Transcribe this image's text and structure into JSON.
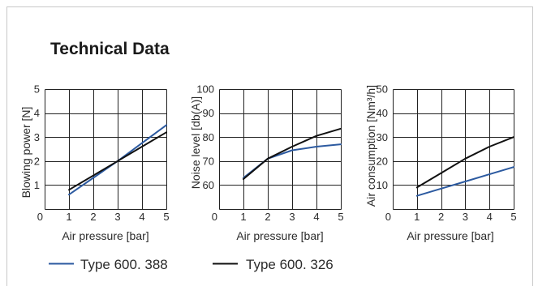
{
  "title": "Technical Data",
  "colors": {
    "frame": "#c8c8c8",
    "grid": "#222222"
  },
  "chart_data": [
    {
      "type": "line",
      "xlabel": "Air pressure [bar]",
      "ylabel": "Blowing power [N]",
      "xlim": [
        0,
        5
      ],
      "ylim": [
        0,
        5
      ],
      "x_ticks": [
        0,
        1,
        2,
        3,
        4,
        5
      ],
      "y_ticks": [
        1,
        2,
        3,
        4,
        5
      ],
      "grid": true,
      "legend": "bottom",
      "x": [
        1,
        2,
        3,
        4,
        5
      ],
      "series": [
        {
          "name": "Type 600. 388",
          "color": "#2c5aa0",
          "values": [
            0.6,
            1.3,
            2.0,
            2.75,
            3.5
          ]
        },
        {
          "name": "Type 600. 326",
          "color": "#111111",
          "values": [
            0.8,
            1.4,
            2.0,
            2.6,
            3.2
          ]
        }
      ]
    },
    {
      "type": "line",
      "xlabel": "Air pressure [bar]",
      "ylabel": "Noise level [db(A)]",
      "xlim": [
        0,
        5
      ],
      "ylim": [
        50,
        100
      ],
      "x_ticks": [
        0,
        1,
        2,
        3,
        4,
        5
      ],
      "y_ticks": [
        60,
        70,
        80,
        90,
        100
      ],
      "grid": true,
      "legend": "bottom",
      "x": [
        1,
        2,
        3,
        4,
        5
      ],
      "series": [
        {
          "name": "Type 600. 388",
          "color": "#2c5aa0",
          "values": [
            63,
            71,
            74.5,
            76,
            77
          ]
        },
        {
          "name": "Type 600. 326",
          "color": "#111111",
          "values": [
            62.5,
            71,
            76,
            80.5,
            83.5
          ]
        }
      ]
    },
    {
      "type": "line",
      "xlabel": "Air pressure [bar]",
      "ylabel": "Air consumption [Nm³/h]",
      "xlim": [
        0,
        5
      ],
      "ylim": [
        0,
        50
      ],
      "x_ticks": [
        0,
        1,
        2,
        3,
        4,
        5
      ],
      "y_ticks": [
        10,
        20,
        30,
        40,
        50
      ],
      "grid": true,
      "legend": "bottom",
      "x": [
        1,
        2,
        3,
        4,
        5
      ],
      "series": [
        {
          "name": "Type 600. 388",
          "color": "#2c5aa0",
          "values": [
            5.5,
            8.5,
            11.5,
            14.5,
            17.5
          ]
        },
        {
          "name": "Type 600. 326",
          "color": "#111111",
          "values": [
            9,
            15,
            21,
            26,
            30
          ]
        }
      ]
    }
  ]
}
